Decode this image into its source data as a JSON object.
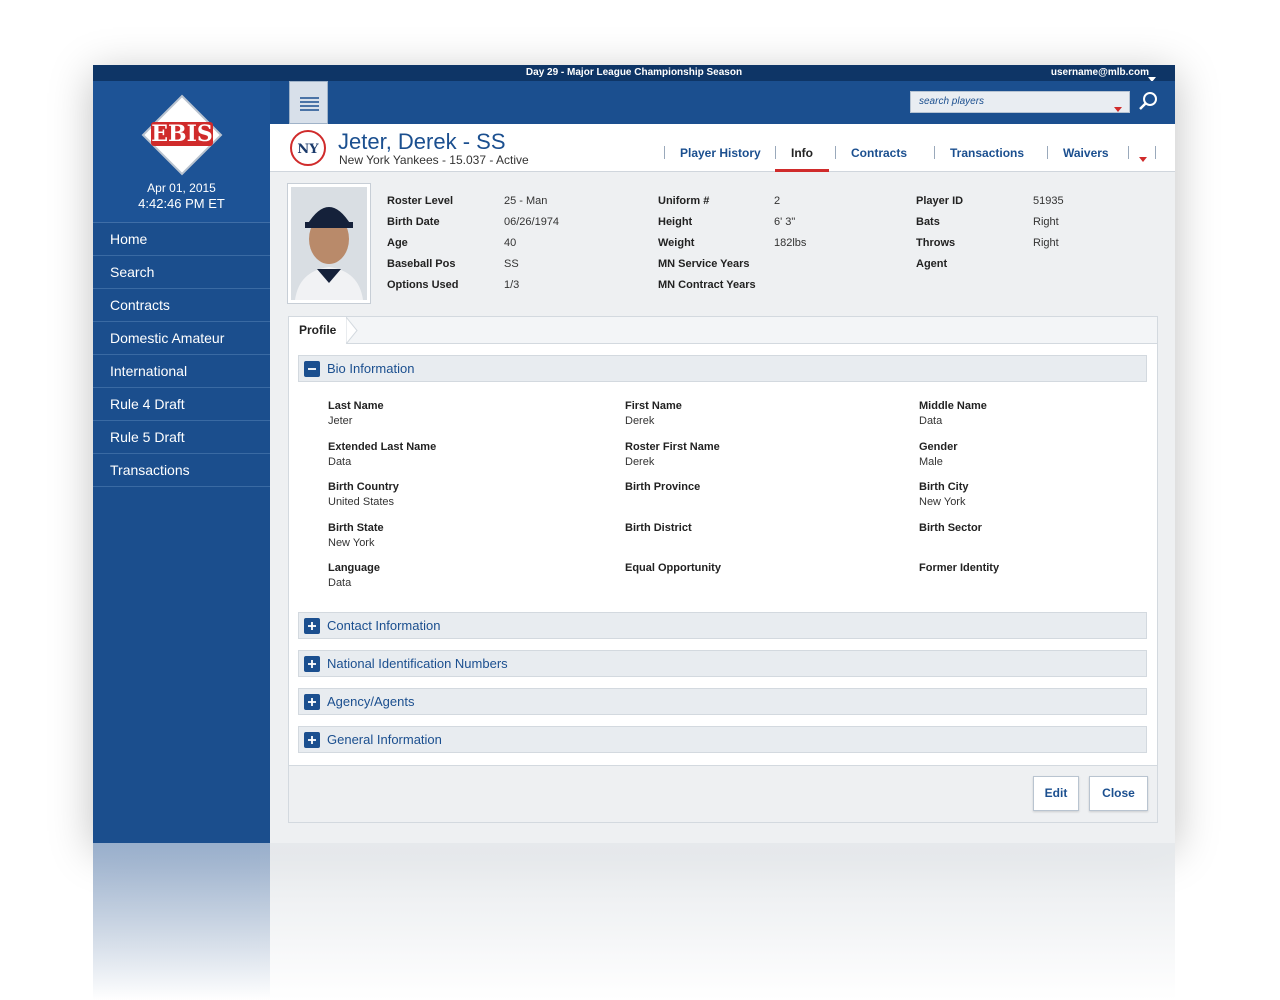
{
  "topbar": {
    "season": "Day 29 - Major League Championship Season",
    "user": "username@mlb.com"
  },
  "sidebar": {
    "logo": "EBIS",
    "date": "Apr 01, 2015",
    "time": "4:42:46 PM ET",
    "nav": [
      "Home",
      "Search",
      "Contracts",
      "Domestic Amateur",
      "International",
      "Rule 4 Draft",
      "Rule 5 Draft",
      "Transactions"
    ]
  },
  "search": {
    "placeholder": "search players"
  },
  "player": {
    "name": "Jeter, Derek - SS",
    "subtitle": "New York Yankees - 15.037 - Active"
  },
  "tabs": [
    "Player History",
    "Info",
    "Contracts",
    "Transactions",
    "Waivers"
  ],
  "attributes": [
    [
      {
        "label": "Roster Level",
        "value": "25 - Man"
      },
      {
        "label": "Birth Date",
        "value": "06/26/1974"
      },
      {
        "label": "Age",
        "value": "40"
      },
      {
        "label": "Baseball Pos",
        "value": "SS"
      },
      {
        "label": "Options Used",
        "value": "1/3"
      }
    ],
    [
      {
        "label": "Uniform #",
        "value": "2"
      },
      {
        "label": "Height",
        "value": "6' 3\""
      },
      {
        "label": "Weight",
        "value": "182lbs"
      },
      {
        "label": "MN Service Years"
      },
      {
        "label": "MN Contract Years"
      }
    ],
    [
      {
        "label": "Player ID",
        "value": "51935"
      },
      {
        "label": "Bats",
        "value": "Right"
      },
      {
        "label": "Throws",
        "value": "Right"
      },
      {
        "label": "Agent"
      }
    ]
  ],
  "profile": {
    "tab": "Profile",
    "sections": [
      {
        "title": "Bio Information",
        "expanded": true,
        "fields": [
          {
            "label": "Last Name",
            "value": "Jeter"
          },
          {
            "label": "First Name",
            "value": "Derek"
          },
          {
            "label": "Middle Name",
            "value": "Data"
          },
          {
            "label": "Extended Last Name",
            "value": "Data"
          },
          {
            "label": "Roster First Name",
            "value": "Derek"
          },
          {
            "label": "Gender",
            "value": "Male"
          },
          {
            "label": "Birth Country",
            "value": "United States"
          },
          {
            "label": "Birth Province"
          },
          {
            "label": "Birth City",
            "value": "New York"
          },
          {
            "label": "Birth State",
            "value": "New York"
          },
          {
            "label": "Birth District"
          },
          {
            "label": "Birth Sector"
          },
          {
            "label": "Language",
            "value": "Data"
          },
          {
            "label": "Equal Opportunity"
          },
          {
            "label": "Former Identity"
          }
        ]
      },
      {
        "title": "Contact Information",
        "expanded": false
      },
      {
        "title": "National Identification Numbers",
        "expanded": false
      },
      {
        "title": "Agency/Agents",
        "expanded": false
      },
      {
        "title": "General Information",
        "expanded": false
      }
    ],
    "buttons": [
      "Edit",
      "Close"
    ]
  }
}
